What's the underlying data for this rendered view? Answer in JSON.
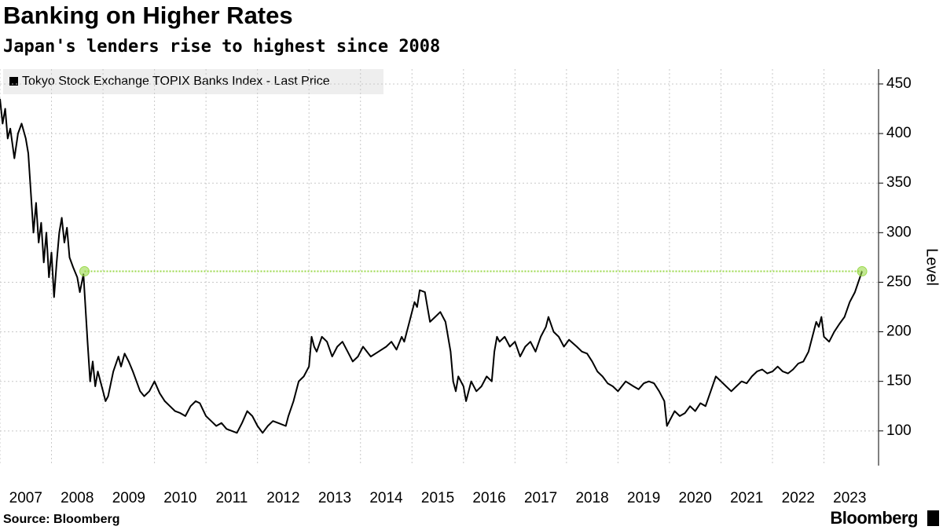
{
  "chart_data": {
    "type": "line",
    "title": "Banking on Higher Rates",
    "subtitle": "Japan's lenders rise to highest since 2008",
    "y_label": "Level",
    "source": "Source: Bloomberg",
    "brand": "Bloomberg",
    "xlim": [
      2007,
      2024.06
    ],
    "xticks": [
      2007,
      2008,
      2009,
      2010,
      2011,
      2012,
      2013,
      2014,
      2015,
      2016,
      2017,
      2018,
      2019,
      2020,
      2021,
      2022,
      2023
    ],
    "ylim": [
      65,
      465
    ],
    "yticks": [
      100,
      150,
      200,
      250,
      300,
      350,
      400,
      450
    ],
    "grid": true,
    "legend": "top-left",
    "reference_line": {
      "value": 261,
      "x": [
        2008.64,
        2023.74
      ],
      "color": "#9bd94b"
    },
    "x": [
      2007.0,
      2007.05,
      2007.1,
      2007.15,
      2007.2,
      2007.28,
      2007.35,
      2007.42,
      2007.5,
      2007.55,
      2007.6,
      2007.65,
      2007.7,
      2007.75,
      2007.8,
      2007.85,
      2007.9,
      2007.95,
      2008.0,
      2008.05,
      2008.1,
      2008.15,
      2008.2,
      2008.25,
      2008.3,
      2008.35,
      2008.42,
      2008.5,
      2008.55,
      2008.62,
      2008.7,
      2008.75,
      2008.8,
      2008.85,
      2008.9,
      2008.95,
      2009.0,
      2009.05,
      2009.1,
      2009.2,
      2009.3,
      2009.35,
      2009.42,
      2009.5,
      2009.58,
      2009.65,
      2009.72,
      2009.8,
      2009.9,
      2010.0,
      2010.1,
      2010.2,
      2010.3,
      2010.4,
      2010.5,
      2010.6,
      2010.7,
      2010.8,
      2010.88,
      2011.0,
      2011.1,
      2011.2,
      2011.3,
      2011.4,
      2011.5,
      2011.6,
      2011.7,
      2011.8,
      2011.9,
      2012.0,
      2012.1,
      2012.2,
      2012.3,
      2012.4,
      2012.55,
      2012.6,
      2012.7,
      2012.8,
      2012.9,
      2013.0,
      2013.05,
      2013.1,
      2013.15,
      2013.25,
      2013.35,
      2013.45,
      2013.55,
      2013.65,
      2013.75,
      2013.85,
      2013.95,
      2014.05,
      2014.2,
      2014.35,
      2014.5,
      2014.6,
      2014.7,
      2014.8,
      2014.85,
      2014.95,
      2015.05,
      2015.1,
      2015.15,
      2015.25,
      2015.3,
      2015.35,
      2015.45,
      2015.55,
      2015.65,
      2015.75,
      2015.8,
      2015.85,
      2015.9,
      2016.0,
      2016.05,
      2016.15,
      2016.25,
      2016.35,
      2016.45,
      2016.55,
      2016.6,
      2016.65,
      2016.7,
      2016.8,
      2016.9,
      2017.0,
      2017.1,
      2017.2,
      2017.3,
      2017.4,
      2017.5,
      2017.6,
      2017.65,
      2017.75,
      2017.85,
      2017.95,
      2018.05,
      2018.2,
      2018.3,
      2018.4,
      2018.5,
      2018.6,
      2018.7,
      2018.8,
      2018.9,
      2019.0,
      2019.15,
      2019.3,
      2019.4,
      2019.5,
      2019.6,
      2019.7,
      2019.8,
      2019.9,
      2019.95,
      2020.0,
      2020.1,
      2020.2,
      2020.3,
      2020.4,
      2020.5,
      2020.6,
      2020.7,
      2020.8,
      2020.9,
      2021.0,
      2021.1,
      2021.2,
      2021.3,
      2021.4,
      2021.5,
      2021.6,
      2021.7,
      2021.8,
      2021.9,
      2022.0,
      2022.1,
      2022.2,
      2022.3,
      2022.4,
      2022.5,
      2022.6,
      2022.7,
      2022.8,
      2022.85,
      2022.9,
      2022.95,
      2023.0,
      2023.1,
      2023.2,
      2023.3,
      2023.4,
      2023.5,
      2023.6,
      2023.7,
      2023.74
    ],
    "series": [
      {
        "name": "Tokyo Stock Exchange TOPIX Banks Index - Last Price",
        "color": "#000000",
        "values": [
          435,
          410,
          425,
          395,
          405,
          375,
          400,
          410,
          395,
          380,
          340,
          300,
          330,
          290,
          310,
          270,
          300,
          255,
          280,
          235,
          270,
          300,
          315,
          290,
          305,
          275,
          265,
          255,
          240,
          258,
          190,
          150,
          170,
          145,
          160,
          150,
          140,
          130,
          135,
          160,
          175,
          165,
          178,
          170,
          160,
          150,
          140,
          135,
          140,
          150,
          138,
          130,
          125,
          120,
          118,
          115,
          125,
          130,
          128,
          115,
          110,
          105,
          108,
          102,
          100,
          98,
          108,
          120,
          115,
          105,
          98,
          105,
          110,
          108,
          105,
          115,
          130,
          150,
          155,
          165,
          195,
          185,
          180,
          195,
          190,
          175,
          185,
          190,
          180,
          170,
          175,
          185,
          175,
          180,
          185,
          190,
          182,
          195,
          190,
          210,
          230,
          225,
          242,
          240,
          225,
          210,
          215,
          220,
          210,
          180,
          150,
          140,
          155,
          145,
          130,
          150,
          140,
          145,
          155,
          150,
          180,
          195,
          190,
          195,
          185,
          190,
          175,
          185,
          190,
          180,
          195,
          205,
          215,
          200,
          195,
          185,
          192,
          185,
          180,
          178,
          170,
          160,
          155,
          148,
          145,
          140,
          150,
          145,
          142,
          148,
          150,
          148,
          140,
          130,
          105,
          110,
          120,
          115,
          118,
          125,
          120,
          128,
          125,
          140,
          155,
          150,
          145,
          140,
          145,
          150,
          148,
          155,
          160,
          162,
          158,
          160,
          165,
          160,
          158,
          162,
          168,
          170,
          180,
          200,
          210,
          205,
          215,
          195,
          190,
          200,
          208,
          215,
          230,
          240,
          255,
          261
        ]
      }
    ]
  }
}
